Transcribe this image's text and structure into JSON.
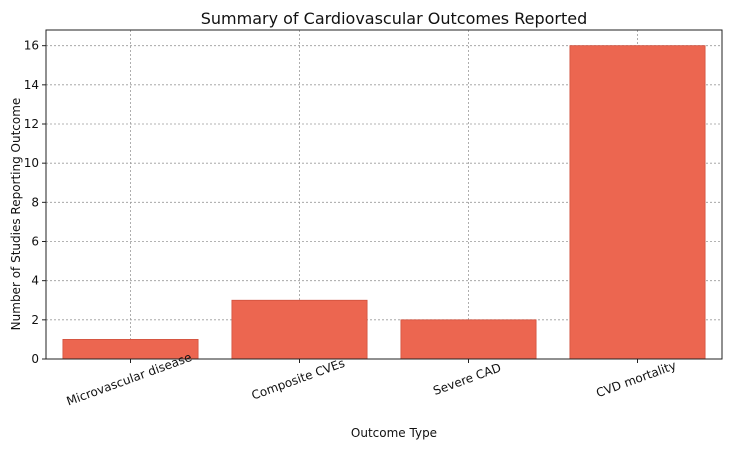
{
  "chart_data": {
    "type": "bar",
    "title": "Summary of Cardiovascular Outcomes Reported",
    "xlabel": "Outcome Type",
    "ylabel": "Number of Studies Reporting Outcome",
    "categories": [
      "Microvascular disease",
      "Composite CVEs",
      "Severe CAD",
      "CVD mortality"
    ],
    "values": [
      1,
      3,
      2,
      16
    ],
    "ylim": [
      0,
      16.8
    ],
    "yticks": [
      0,
      2,
      4,
      6,
      8,
      10,
      12,
      14,
      16
    ],
    "grid": true,
    "bar_color": "#ec6650"
  }
}
